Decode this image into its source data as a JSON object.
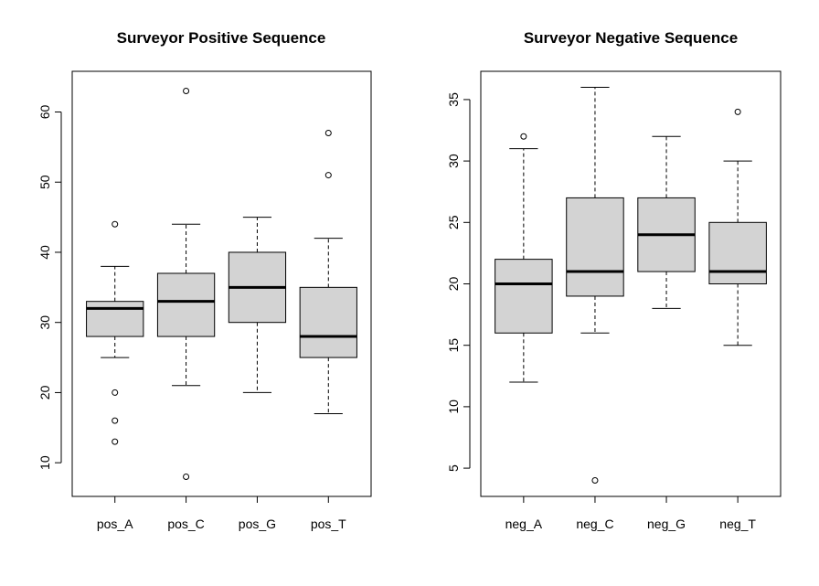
{
  "chart_data": [
    {
      "type": "box",
      "title": "Surveyor Positive Sequence",
      "xlabel": "",
      "ylabel": "",
      "ylim": [
        5.2,
        65.8
      ],
      "yticks": [
        10,
        20,
        30,
        40,
        50,
        60
      ],
      "categories": [
        "pos_A",
        "pos_C",
        "pos_G",
        "pos_T"
      ],
      "boxes": [
        {
          "min": 25,
          "q1": 28,
          "median": 32,
          "q3": 33,
          "max": 38,
          "outliers": [
            44,
            20,
            16,
            13
          ]
        },
        {
          "min": 21,
          "q1": 28,
          "median": 33,
          "q3": 37,
          "max": 44,
          "outliers": [
            63,
            8
          ]
        },
        {
          "min": 20,
          "q1": 30,
          "median": 35,
          "q3": 40,
          "max": 45,
          "outliers": []
        },
        {
          "min": 17,
          "q1": 25,
          "median": 28,
          "q3": 35,
          "max": 42,
          "outliers": [
            57,
            51
          ]
        }
      ],
      "box_fill": "#d3d3d3",
      "grid": false
    },
    {
      "type": "box",
      "title": "Surveyor Negative Sequence",
      "xlabel": "",
      "ylabel": "",
      "ylim": [
        2.7,
        37.3
      ],
      "yticks": [
        5,
        10,
        15,
        20,
        25,
        30,
        35
      ],
      "categories": [
        "neg_A",
        "neg_C",
        "neg_G",
        "neg_T"
      ],
      "boxes": [
        {
          "min": 12,
          "q1": 16,
          "median": 20,
          "q3": 22,
          "max": 31,
          "outliers": [
            32
          ]
        },
        {
          "min": 16,
          "q1": 19,
          "median": 21,
          "q3": 27,
          "max": 36,
          "outliers": [
            4
          ]
        },
        {
          "min": 18,
          "q1": 21,
          "median": 24,
          "q3": 27,
          "max": 32,
          "outliers": []
        },
        {
          "min": 15,
          "q1": 20,
          "median": 21,
          "q3": 25,
          "max": 30,
          "outliers": [
            34
          ]
        }
      ],
      "box_fill": "#d3d3d3",
      "grid": false
    }
  ]
}
